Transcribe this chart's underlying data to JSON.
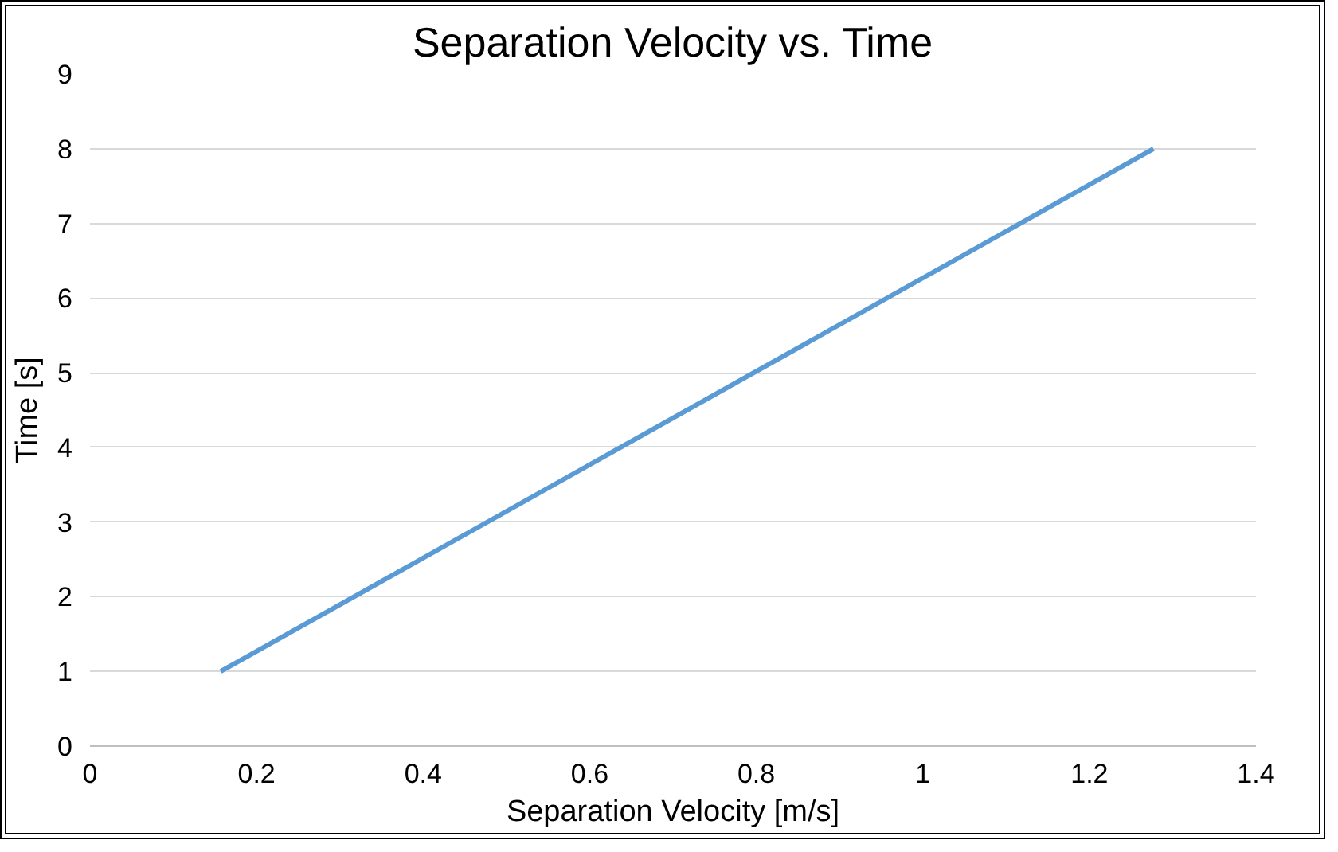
{
  "chart_data": {
    "type": "line",
    "title": "Separation Velocity vs. Time",
    "xlabel": "Separation Velocity [m/s]",
    "ylabel": "Time [s]",
    "x": [
      0.157,
      1.277
    ],
    "series": [
      {
        "color": "#5b9bd5",
        "values": [
          1,
          8
        ]
      }
    ],
    "xlim": [
      0,
      1.4
    ],
    "xticks": [
      0,
      0.2,
      0.4,
      0.6,
      0.8,
      1,
      1.2,
      1.4
    ],
    "ylim": [
      0,
      9
    ],
    "yticks": [
      0,
      1,
      2,
      3,
      4,
      5,
      6,
      7,
      8,
      9
    ],
    "grid": "y",
    "marker": "none",
    "line_style": "solid"
  }
}
